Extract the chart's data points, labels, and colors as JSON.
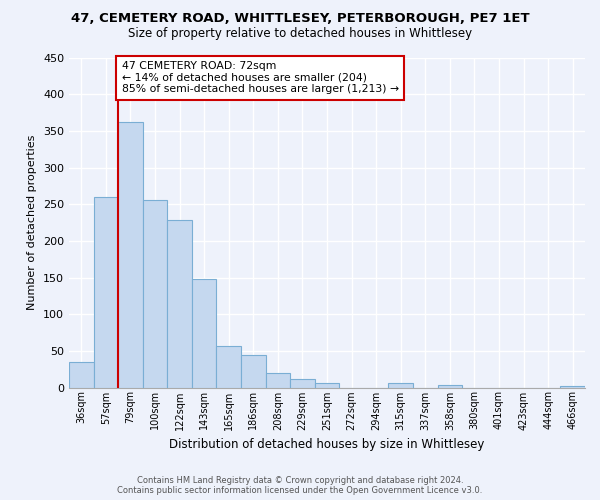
{
  "title": "47, CEMETERY ROAD, WHITTLESEY, PETERBOROUGH, PE7 1ET",
  "subtitle": "Size of property relative to detached houses in Whittlesey",
  "xlabel": "Distribution of detached houses by size in Whittlesey",
  "ylabel": "Number of detached properties",
  "bar_labels": [
    "36sqm",
    "57sqm",
    "79sqm",
    "100sqm",
    "122sqm",
    "143sqm",
    "165sqm",
    "186sqm",
    "208sqm",
    "229sqm",
    "251sqm",
    "272sqm",
    "294sqm",
    "315sqm",
    "337sqm",
    "358sqm",
    "380sqm",
    "401sqm",
    "423sqm",
    "444sqm",
    "466sqm"
  ],
  "bar_values": [
    35,
    260,
    362,
    256,
    228,
    148,
    57,
    45,
    20,
    12,
    6,
    0,
    0,
    6,
    0,
    3,
    0,
    0,
    0,
    0,
    2
  ],
  "bar_color": "#c5d8ef",
  "bar_edge_color": "#7aaed4",
  "marker_line_color": "#cc0000",
  "annotation_line1": "47 CEMETERY ROAD: 72sqm",
  "annotation_line2": "← 14% of detached houses are smaller (204)",
  "annotation_line3": "85% of semi-detached houses are larger (1,213) →",
  "annotation_box_color": "#ffffff",
  "annotation_box_edge": "#cc0000",
  "ylim": [
    0,
    450
  ],
  "yticks": [
    0,
    50,
    100,
    150,
    200,
    250,
    300,
    350,
    400,
    450
  ],
  "footer_line1": "Contains HM Land Registry data © Crown copyright and database right 2024.",
  "footer_line2": "Contains public sector information licensed under the Open Government Licence v3.0.",
  "bg_color": "#eef2fb"
}
